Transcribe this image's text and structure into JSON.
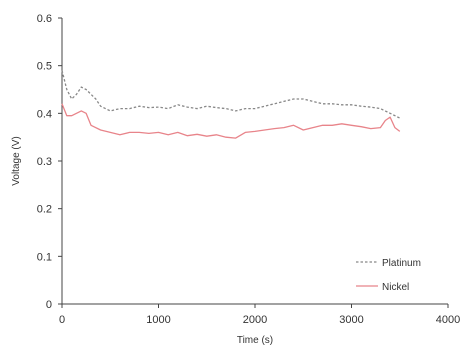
{
  "chart_data": {
    "type": "line",
    "title": "",
    "xlabel": "Time (s)",
    "ylabel": "Voltage (V)",
    "xlim": [
      0,
      4000
    ],
    "ylim": [
      0,
      0.6
    ],
    "xticks": [
      "0",
      "1000",
      "2000",
      "3000",
      "4000"
    ],
    "yticks": [
      "0",
      "0.1",
      "0.2",
      "0.3",
      "0.4",
      "0.5",
      "0.6"
    ],
    "grid": false,
    "legend_position": "bottom-right",
    "series": [
      {
        "name": "Platinum",
        "color": "#888888",
        "style": "dashed",
        "x": [
          0,
          50,
          100,
          150,
          200,
          250,
          300,
          350,
          400,
          500,
          600,
          700,
          800,
          900,
          1000,
          1100,
          1200,
          1300,
          1400,
          1500,
          1600,
          1700,
          1800,
          1900,
          2000,
          2100,
          2200,
          2300,
          2400,
          2500,
          2600,
          2700,
          2800,
          2900,
          3000,
          3100,
          3200,
          3300,
          3400,
          3500
        ],
        "y": [
          0.49,
          0.45,
          0.43,
          0.44,
          0.455,
          0.45,
          0.44,
          0.43,
          0.415,
          0.405,
          0.41,
          0.41,
          0.415,
          0.412,
          0.413,
          0.41,
          0.418,
          0.413,
          0.41,
          0.415,
          0.412,
          0.41,
          0.405,
          0.41,
          0.41,
          0.415,
          0.42,
          0.425,
          0.43,
          0.43,
          0.425,
          0.42,
          0.42,
          0.418,
          0.418,
          0.415,
          0.413,
          0.41,
          0.4,
          0.39
        ]
      },
      {
        "name": "Nickel",
        "color": "#e8848a",
        "style": "solid",
        "x": [
          0,
          50,
          100,
          150,
          200,
          250,
          300,
          400,
          500,
          600,
          700,
          800,
          900,
          1000,
          1100,
          1200,
          1300,
          1400,
          1500,
          1600,
          1700,
          1800,
          1900,
          2000,
          2100,
          2200,
          2300,
          2400,
          2500,
          2600,
          2700,
          2800,
          2900,
          3000,
          3100,
          3200,
          3300,
          3350,
          3400,
          3450,
          3500
        ],
        "y": [
          0.42,
          0.395,
          0.395,
          0.4,
          0.405,
          0.4,
          0.375,
          0.365,
          0.36,
          0.355,
          0.36,
          0.36,
          0.358,
          0.36,
          0.355,
          0.36,
          0.353,
          0.356,
          0.352,
          0.355,
          0.35,
          0.348,
          0.36,
          0.362,
          0.365,
          0.368,
          0.37,
          0.375,
          0.365,
          0.37,
          0.375,
          0.375,
          0.378,
          0.375,
          0.372,
          0.368,
          0.37,
          0.385,
          0.392,
          0.37,
          0.362
        ]
      }
    ]
  }
}
